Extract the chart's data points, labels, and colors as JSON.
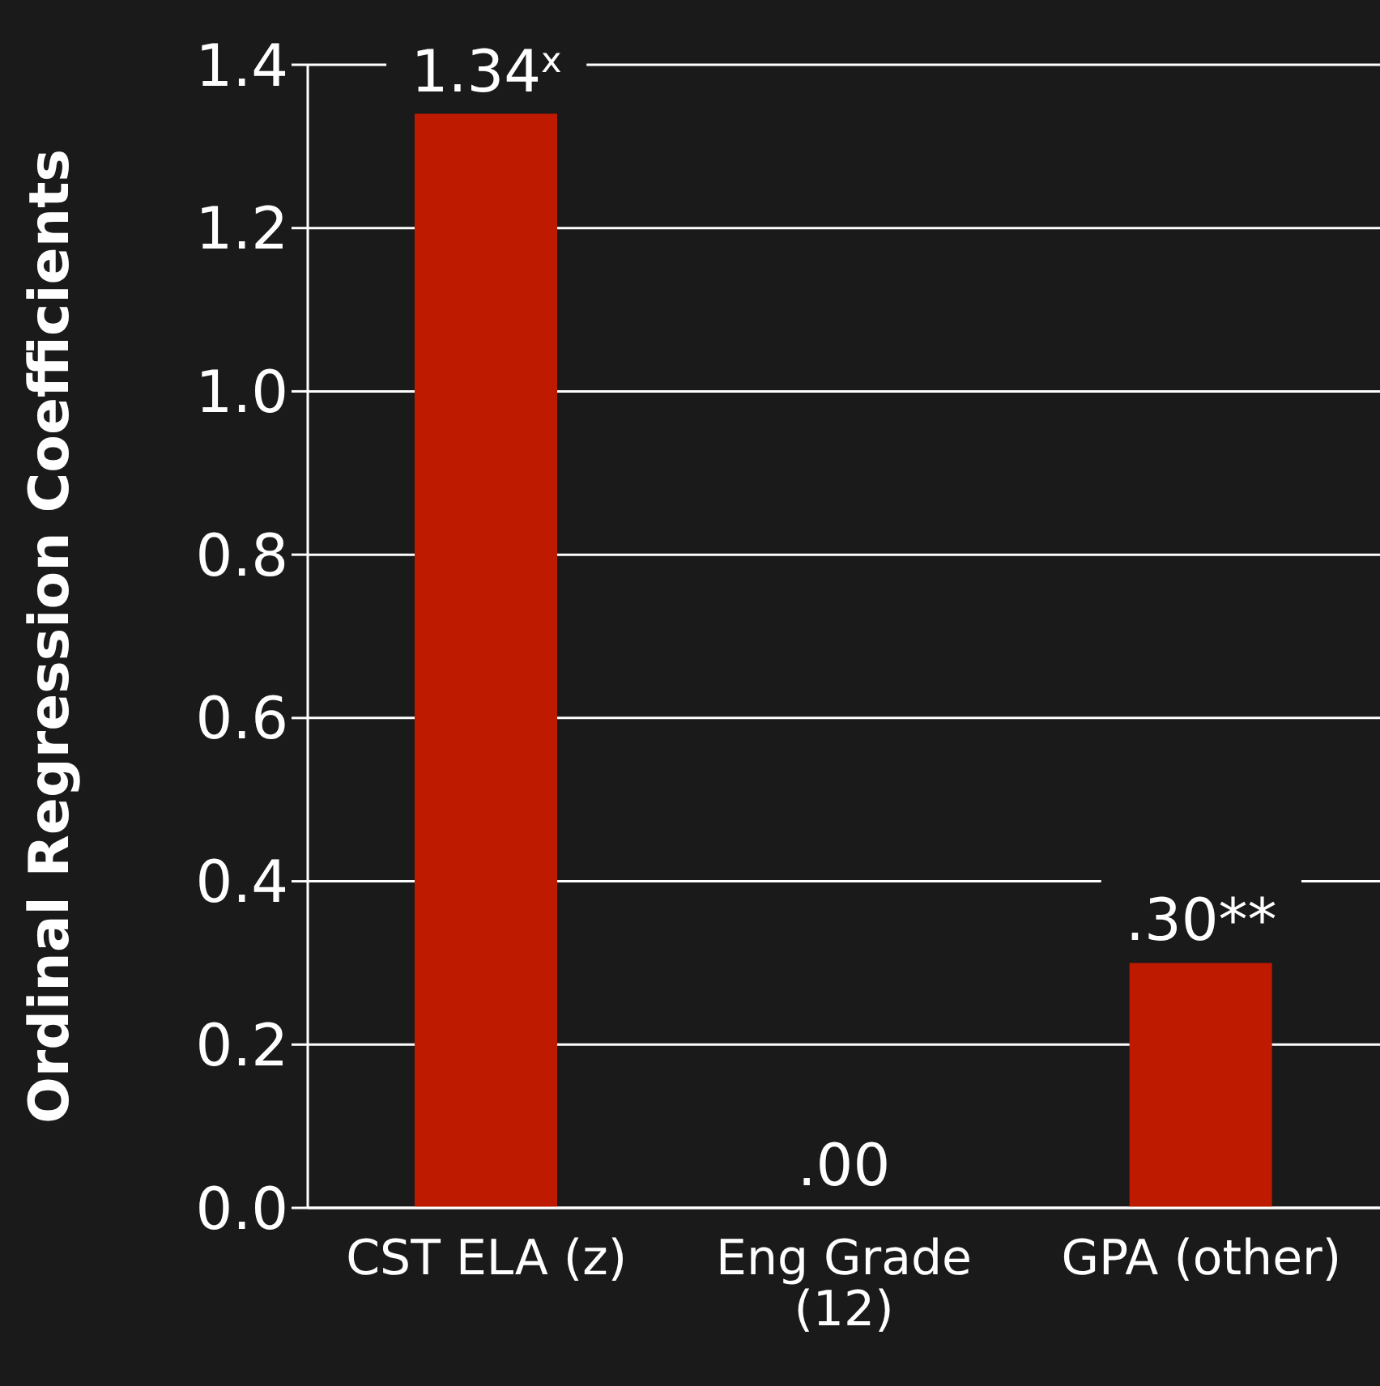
{
  "chart_data": {
    "type": "bar",
    "ylabel": "Ordinal Regression Coefficients",
    "categories": [
      "CST ELA (z)",
      "Eng Grade (12)",
      "GPA (other)"
    ],
    "values": [
      1.34,
      0.0,
      0.3
    ],
    "value_labels": [
      "1.34$^{x}$",
      ".00",
      ".30**"
    ],
    "color": "#bd1a00",
    "ylim": [
      0,
      1.4
    ],
    "yticks": [
      {
        "value": 0,
        "label": "0.0"
      },
      0.2,
      0.4,
      0.6,
      0.8,
      {
        "value": 1,
        "label": "1.0"
      },
      1.2,
      1.4
    ],
    "grid": "y"
  }
}
